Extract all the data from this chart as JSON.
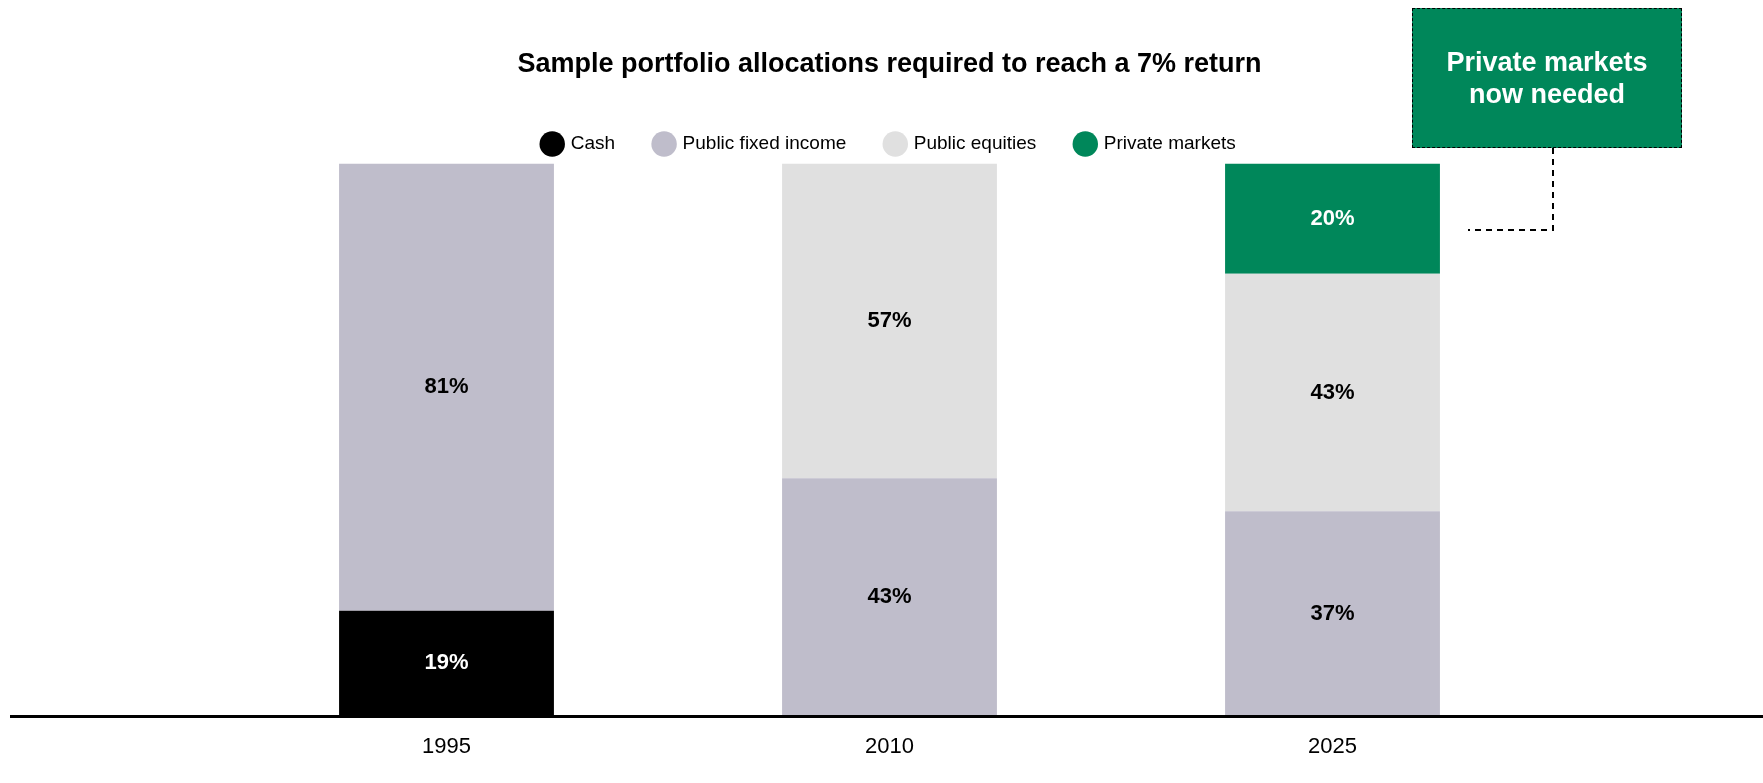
{
  "chart_data": {
    "type": "bar",
    "stacked": true,
    "title": "Sample portfolio allocations required to reach a 7% return",
    "categories": [
      "1995",
      "2010",
      "2025"
    ],
    "series": [
      {
        "name": "Cash",
        "color": "#000000",
        "values": [
          19,
          null,
          null
        ],
        "value_labels": [
          "19%",
          null,
          null
        ]
      },
      {
        "name": "Public fixed income",
        "color": "#bfbdcb",
        "values": [
          81,
          43,
          37
        ],
        "value_labels": [
          "81%",
          "43%",
          "37%"
        ]
      },
      {
        "name": "Public equities",
        "color": "#e0e0e0",
        "values": [
          null,
          57,
          43
        ],
        "value_labels": [
          null,
          "57%",
          "43%"
        ]
      },
      {
        "name": "Private markets",
        "color": "#00875a",
        "values": [
          null,
          null,
          20
        ],
        "value_labels": [
          null,
          null,
          "20%"
        ]
      }
    ],
    "legend": "top",
    "grid": false,
    "tick_labels": "x",
    "annotations": [
      "Private markets now needed"
    ]
  }
}
